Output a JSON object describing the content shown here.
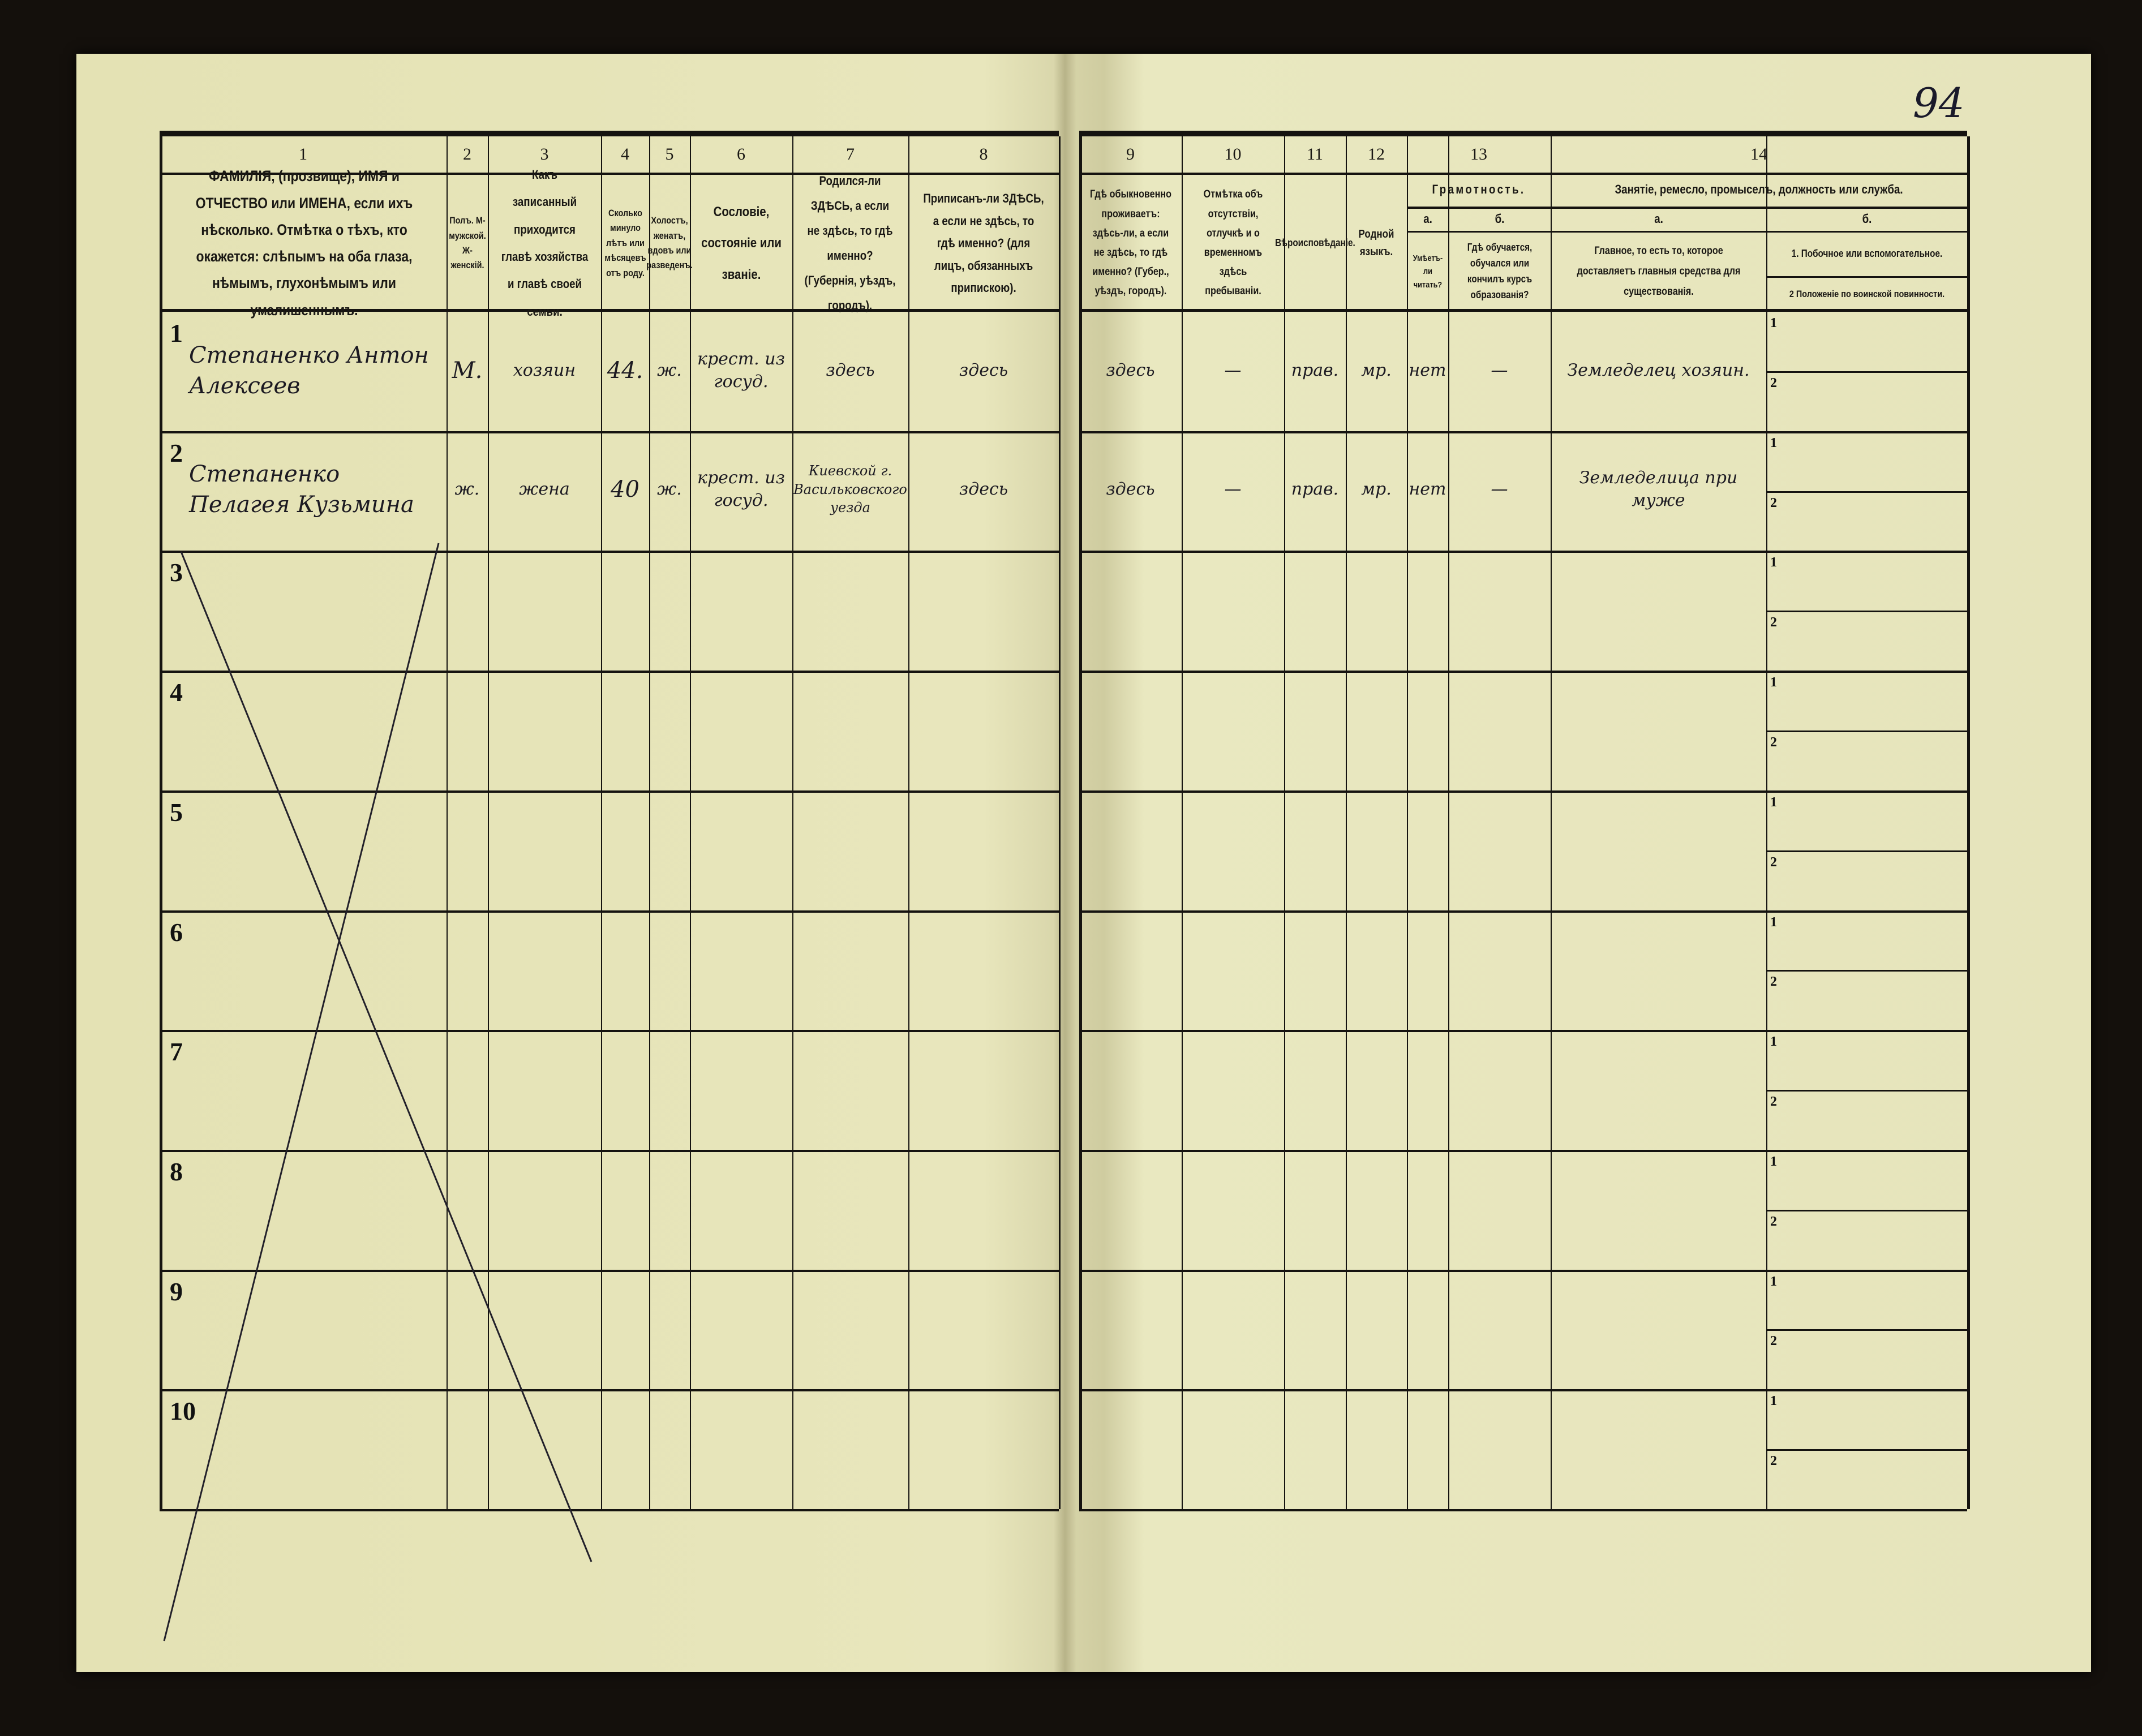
{
  "page_number": "94",
  "columns": {
    "numbers": [
      "1",
      "2",
      "3",
      "4",
      "5",
      "6",
      "7",
      "8",
      "9",
      "10",
      "11",
      "12",
      "13",
      "14"
    ],
    "c1": "ФАМИЛІЯ, (прозвище), ИМЯ и ОТЧЕСТВО или ИМЕНА, если ихъ нѣсколько. Отмѣтка о тѣхъ, кто окажется: слѣпымъ на оба глаза, нѣмымъ, глухонѣмымъ или умалишеннымъ.",
    "c2": "Полъ. М-мужской. Ж-женскій.",
    "c3": "Какъ записанный приходится главѣ хозяйства и главѣ своей семьи.",
    "c4": "Сколько минуло лѣтъ или мѣсяцевъ отъ роду.",
    "c5": "Холостъ, женатъ, вдовъ или разведенъ.",
    "c6": "Сословіе, состояніе или званіе.",
    "c7": "Родился-ли ЗДѢСЬ, а если не здѣсь, то гдѣ именно? (Губернія, уѣздъ, городъ).",
    "c8": "Приписанъ-ли ЗДѢСЬ, а если не здѣсь, то гдѣ именно? (для лицъ, обязанныхъ припискою).",
    "c9": "Гдѣ обыкновенно проживаетъ: здѣсь-ли, а если не здѣсь, то гдѣ именно? (Губер., уѣздъ, городъ).",
    "c10": "Отмѣтка объ отсутствіи, отлучкѣ и о временномъ здѣсь пребываніи.",
    "c11": "Вѣроисповѣданіе.",
    "c12": "Родной языкъ.",
    "c13": "Грамотность.",
    "c13a_letter": "а.",
    "c13a": "Умѣетъ-ли читать?",
    "c13b_letter": "б.",
    "c13b": "Гдѣ обучается, обучался или кончилъ курсъ образованія?",
    "c14": "Занятіе, ремесло, промыселъ, должность или служба.",
    "c14a_letter": "а.",
    "c14a": "Главное, то есть то, которое доставляетъ главныя средства для существованія.",
    "c14b_letter": "б.",
    "c14b1": "1. Побочное или вспомогательное.",
    "c14b2": "2 Положеніе по воинской повинности."
  },
  "rows": [
    {
      "no": "1",
      "name": "Степаненко Антон Алексеев",
      "sex": "М.",
      "relation": "хозяин",
      "age": "44.",
      "marital": "ж.",
      "estate": "крест. из госуд.",
      "born": "здесь",
      "registered": "здесь",
      "resides": "здесь",
      "absence": "—",
      "religion": "прав.",
      "language": "мр.",
      "literate": "нет",
      "education": "—",
      "occupation": "Земледелец хозяин."
    },
    {
      "no": "2",
      "name": "Степаненко Пелагея Кузьмина",
      "sex": "ж.",
      "relation": "жена",
      "age": "40",
      "marital": "ж.",
      "estate": "крест. из госуд.",
      "born": "Киевской г. Васильковского уезда",
      "registered": "здесь",
      "resides": "здесь",
      "absence": "—",
      "religion": "прав.",
      "language": "мр.",
      "literate": "нет",
      "education": "—",
      "occupation": "Земледелица при муже"
    },
    {
      "no": "3"
    },
    {
      "no": "4"
    },
    {
      "no": "5"
    },
    {
      "no": "6"
    },
    {
      "no": "7"
    },
    {
      "no": "8"
    },
    {
      "no": "9"
    },
    {
      "no": "10"
    }
  ],
  "sub_labels": [
    "1",
    "2"
  ]
}
